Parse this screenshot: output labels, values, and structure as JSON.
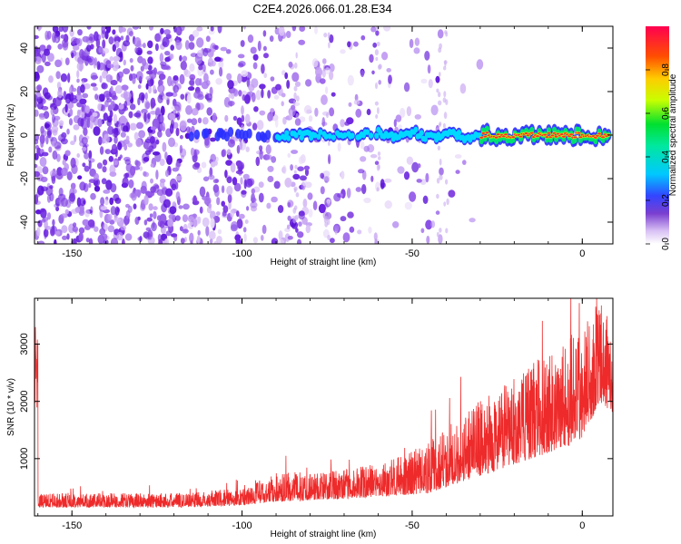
{
  "title": "C2E4.2026.066.01.28.E34",
  "chart_data": [
    {
      "type": "heatmap",
      "xlabel": "Height of straight line (km)",
      "ylabel": "Frequency (Hz)",
      "xlim": [
        -161,
        9
      ],
      "ylim": [
        -50,
        50
      ],
      "xticks": [
        -150,
        -100,
        -50,
        0
      ],
      "yticks": [
        -40,
        -20,
        0,
        20,
        40
      ],
      "colorbar": {
        "label": "Normalized spectral amplitude",
        "range": [
          0,
          1
        ],
        "ticks": [
          0,
          0.2,
          0.4,
          0.6,
          0.8
        ],
        "tick_labels": [
          "0.0",
          "0.2",
          "0.4",
          "0.6",
          "0.8"
        ],
        "stops": [
          "#ffffff",
          "#7a3fd0",
          "#3344ff",
          "#00e0ff",
          "#00e060",
          "#c8ff00",
          "#ffcc00",
          "#ff5000",
          "#ff0050"
        ]
      },
      "colors": {
        "noise": "#6a1fd8",
        "band_edge": "#1b2cff",
        "band_mid": "#00d8ff",
        "band_core": "#ff2a2a"
      },
      "signal": {
        "description_free": true,
        "onset_km": -116,
        "strong_from_km": -30,
        "center_hz": 0
      }
    },
    {
      "type": "line",
      "xlabel": "Height of straight line (km)",
      "ylabel": "SNR (10 * v/v)",
      "xlim": [
        -161,
        9
      ],
      "ylim": [
        0,
        3800
      ],
      "xticks": [
        -150,
        -100,
        -50,
        0
      ],
      "yticks": [
        1000,
        2000,
        3000
      ],
      "series": [
        {
          "name": "SNR",
          "color": "#ee2a2a",
          "envelope": [
            {
              "x": -160,
              "base": 150,
              "amp": 250
            },
            {
              "x": -120,
              "base": 150,
              "amp": 250
            },
            {
              "x": -100,
              "base": 180,
              "amp": 300
            },
            {
              "x": -90,
              "base": 250,
              "amp": 500
            },
            {
              "x": -70,
              "base": 300,
              "amp": 500
            },
            {
              "x": -55,
              "base": 350,
              "amp": 650
            },
            {
              "x": -45,
              "base": 400,
              "amp": 900
            },
            {
              "x": -35,
              "base": 600,
              "amp": 1200
            },
            {
              "x": -20,
              "base": 900,
              "amp": 1500
            },
            {
              "x": -10,
              "base": 1100,
              "amp": 1800
            },
            {
              "x": 0,
              "base": 1300,
              "amp": 2000
            },
            {
              "x": 5,
              "base": 2000,
              "amp": 1800
            },
            {
              "x": 9,
              "base": 1800,
              "amp": 1500
            }
          ]
        }
      ]
    }
  ]
}
